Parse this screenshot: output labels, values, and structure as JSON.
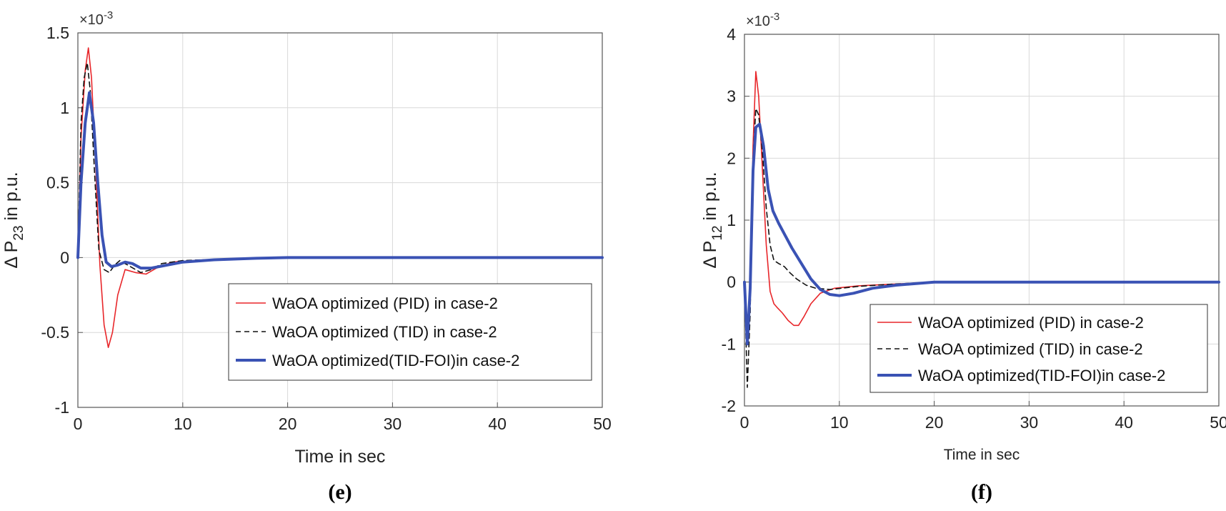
{
  "chart_data": [
    {
      "type": "line",
      "panel_label": "(e)",
      "panel_label_parts": [
        "(",
        "e",
        ")"
      ],
      "xlabel": "Time in sec",
      "ylabel_prefix": "Δ P",
      "ylabel_sub": "23",
      "ylabel_suffix": " in p.u.",
      "y_exponent": "×10",
      "y_exponent_power": "-3",
      "xlim": [
        0,
        50
      ],
      "ylim": [
        -1,
        1.5
      ],
      "xticks": [
        0,
        10,
        20,
        30,
        40,
        50
      ],
      "xtick_labels": [
        "0",
        "10",
        "20",
        "30",
        "40",
        "50"
      ],
      "yticks": [
        -1,
        -0.5,
        0,
        0.5,
        1,
        1.5
      ],
      "ytick_labels": [
        "-1",
        "-0.5",
        "0",
        "0.5",
        "1",
        "1.5"
      ],
      "grid": true,
      "legend_position": "lower-right",
      "series": [
        {
          "name": "WaOA optimized (PID) in case-2",
          "color": "#e8262a",
          "dash": "solid",
          "width": "thin",
          "x": [
            0,
            0.3,
            0.7,
            1.0,
            1.3,
            1.7,
            2.1,
            2.5,
            2.9,
            3.3,
            3.8,
            4.5,
            5.5,
            6.5,
            7.5,
            9,
            12,
            16,
            20,
            30,
            50
          ],
          "y": [
            0,
            0.8,
            1.25,
            1.4,
            1.2,
            0.6,
            -0.05,
            -0.45,
            -0.6,
            -0.5,
            -0.25,
            -0.08,
            -0.1,
            -0.11,
            -0.07,
            -0.03,
            -0.015,
            -0.005,
            0,
            0,
            0
          ]
        },
        {
          "name": "WaOA optimized (TID) in case-2",
          "color": "#111111",
          "dash": "dashed",
          "width": "thin",
          "x": [
            0,
            0.3,
            0.6,
            0.9,
            1.2,
            1.6,
            2.0,
            2.5,
            3.0,
            3.5,
            4.0,
            5.0,
            6.0,
            7.0,
            8.0,
            10,
            14,
            20,
            50
          ],
          "y": [
            0,
            0.9,
            1.2,
            1.3,
            1.1,
            0.55,
            0.05,
            -0.08,
            -0.1,
            -0.05,
            -0.02,
            -0.06,
            -0.1,
            -0.08,
            -0.04,
            -0.02,
            -0.01,
            0,
            0
          ]
        },
        {
          "name": "WaOA optimized(TID-FOI)in case-2",
          "color": "#3a52b4",
          "dash": "solid",
          "width": "thick",
          "x": [
            0,
            0.3,
            0.7,
            1.1,
            1.5,
            1.9,
            2.3,
            2.7,
            3.2,
            3.8,
            4.5,
            5.2,
            6.0,
            7.0,
            8.5,
            10,
            13,
            17,
            20,
            50
          ],
          "y": [
            0,
            0.5,
            0.9,
            1.1,
            0.9,
            0.5,
            0.15,
            -0.03,
            -0.06,
            -0.05,
            -0.03,
            -0.04,
            -0.07,
            -0.07,
            -0.05,
            -0.03,
            -0.015,
            -0.005,
            0,
            0
          ]
        }
      ]
    },
    {
      "type": "line",
      "panel_label": "(f)",
      "panel_label_parts": [
        "(",
        "f",
        ")"
      ],
      "xlabel": "Time in sec",
      "ylabel_prefix": "Δ P",
      "ylabel_sub": "12",
      "ylabel_suffix": " in p.u.",
      "y_exponent": "×10",
      "y_exponent_power": "-3",
      "xlim": [
        0,
        50
      ],
      "ylim": [
        -2,
        4
      ],
      "xticks": [
        0,
        10,
        20,
        30,
        40,
        50
      ],
      "xtick_labels": [
        "0",
        "10",
        "20",
        "30",
        "40",
        "50"
      ],
      "yticks": [
        -2,
        -1,
        0,
        1,
        2,
        3,
        4
      ],
      "ytick_labels": [
        "-2",
        "-1",
        "0",
        "1",
        "2",
        "3",
        "4"
      ],
      "grid": true,
      "legend_position": "lower-right",
      "series": [
        {
          "name": "WaOA optimized (PID) in case-2",
          "color": "#e8262a",
          "dash": "solid",
          "width": "thin",
          "x": [
            0,
            0.3,
            0.6,
            0.9,
            1.2,
            1.5,
            1.9,
            2.3,
            2.7,
            3.1,
            3.5,
            4.0,
            4.6,
            5.2,
            5.7,
            6.3,
            7.0,
            8.0,
            9.5,
            12,
            16,
            20,
            50
          ],
          "y": [
            0,
            -0.9,
            -0.2,
            2.2,
            3.4,
            3.0,
            1.8,
            0.6,
            -0.15,
            -0.35,
            -0.42,
            -0.5,
            -0.62,
            -0.7,
            -0.7,
            -0.55,
            -0.35,
            -0.18,
            -0.1,
            -0.06,
            -0.03,
            0,
            0
          ]
        },
        {
          "name": "WaOA optimized (TID) in case-2",
          "color": "#111111",
          "dash": "dashed",
          "width": "thin",
          "x": [
            0,
            0.3,
            0.6,
            0.9,
            1.2,
            1.5,
            1.9,
            2.3,
            2.7,
            3.1,
            3.6,
            4.2,
            4.8,
            5.5,
            6.5,
            7.5,
            9,
            12,
            16,
            20,
            50
          ],
          "y": [
            0,
            -1.7,
            -0.5,
            2.0,
            2.8,
            2.7,
            2.1,
            1.2,
            0.6,
            0.35,
            0.3,
            0.25,
            0.15,
            0.05,
            -0.05,
            -0.1,
            -0.12,
            -0.07,
            -0.03,
            0,
            0
          ]
        },
        {
          "name": "WaOA optimized(TID-FOI)in case-2",
          "color": "#3a52b4",
          "dash": "solid",
          "width": "thick",
          "x": [
            0,
            0.3,
            0.6,
            0.9,
            1.2,
            1.6,
            2.0,
            2.5,
            3.0,
            3.6,
            4.3,
            5.0,
            6.0,
            7.0,
            8.0,
            9.0,
            10,
            11.5,
            13.5,
            16,
            20,
            50
          ],
          "y": [
            0,
            -1.0,
            -0.1,
            1.8,
            2.5,
            2.55,
            2.2,
            1.5,
            1.15,
            0.95,
            0.75,
            0.55,
            0.3,
            0.05,
            -0.12,
            -0.2,
            -0.22,
            -0.18,
            -0.1,
            -0.05,
            0,
            0
          ]
        }
      ]
    }
  ]
}
